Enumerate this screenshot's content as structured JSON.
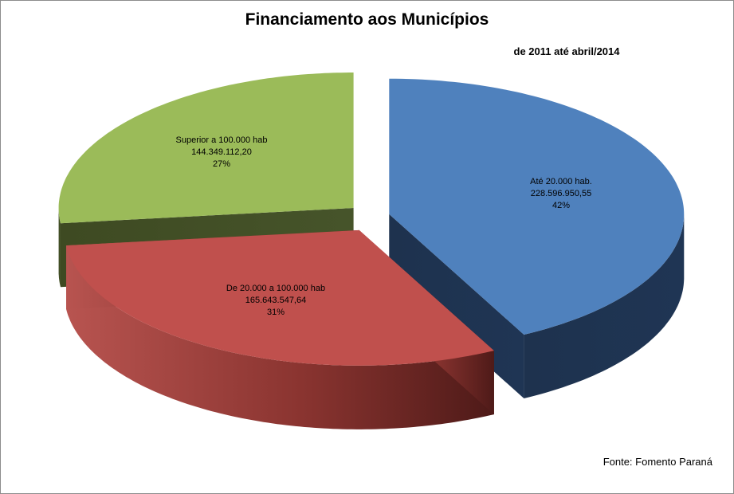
{
  "chart_data": {
    "type": "pie",
    "title": "Financiamento aos Municípios",
    "subtitle": "de 2011 até abril/2014",
    "source": "Fonte: Fomento Paraná",
    "exploded": true,
    "three_d": true,
    "slices": [
      {
        "label": "Até  20.000 hab.",
        "value_text": "228.596.950,55",
        "value": 228596950.55,
        "percent": 42,
        "percent_text": "42%",
        "color": "#4F81BD"
      },
      {
        "label": "De 20.000 a 100.000 hab",
        "value_text": "165.643.547,64",
        "value": 165643547.64,
        "percent": 31,
        "percent_text": "31%",
        "color": "#C0504D"
      },
      {
        "label": "Superior a  100.000 hab",
        "value_text": "144.349.112,20",
        "value": 144349112.2,
        "percent": 27,
        "percent_text": "27%",
        "color": "#9BBB59"
      }
    ]
  }
}
